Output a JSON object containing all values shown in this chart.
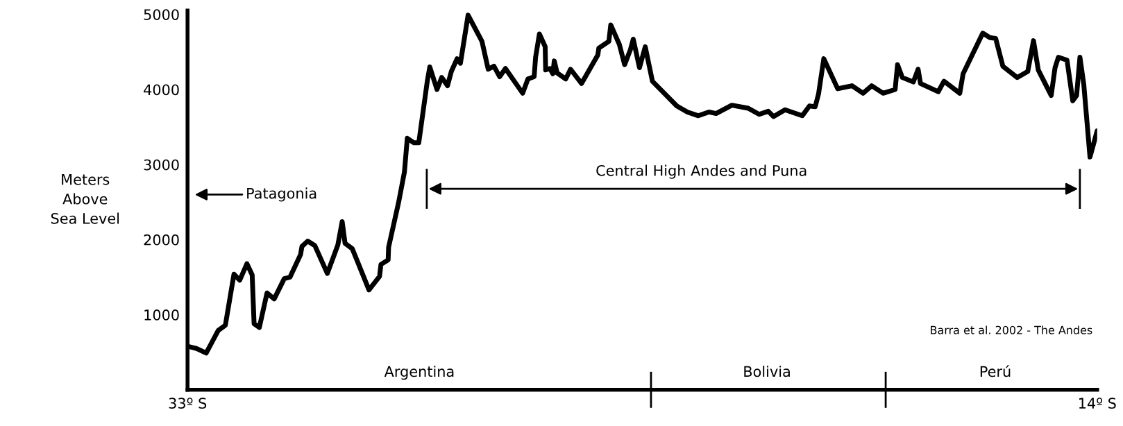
{
  "chart_data": {
    "type": "line",
    "ylabel": "Meters\nAbove\nSea Level",
    "color": "#000000",
    "x": [
      -33.0,
      -32.81,
      -32.61,
      -32.36,
      -32.21,
      -32.03,
      -31.91,
      -31.76,
      -31.65,
      -31.61,
      -31.5,
      -31.34,
      -31.19,
      -30.98,
      -30.86,
      -30.64,
      -30.61,
      -30.49,
      -30.34,
      -30.08,
      -29.86,
      -29.77,
      -29.71,
      -29.56,
      -29.21,
      -28.99,
      -28.96,
      -28.81,
      -28.8,
      -28.59,
      -28.47,
      -28.41,
      -28.27,
      -28.17,
      -27.99,
      -27.94,
      -27.79,
      -27.69,
      -27.57,
      -27.49,
      -27.37,
      -27.3,
      -27.14,
      -26.85,
      -26.72,
      -26.6,
      -26.48,
      -26.36,
      -26.0,
      -25.89,
      -25.76,
      -25.73,
      -25.65,
      -25.53,
      -25.52,
      -25.43,
      -25.37,
      -25.34,
      -25.28,
      -25.1,
      -25.0,
      -24.77,
      -24.43,
      -24.41,
      -24.2,
      -24.16,
      -23.98,
      -23.87,
      -23.75,
      -23.69,
      -23.56,
      -23.44,
      -23.29,
      -22.78,
      -22.56,
      -22.33,
      -22.11,
      -21.96,
      -21.63,
      -21.29,
      -21.06,
      -20.87,
      -20.76,
      -20.52,
      -20.16,
      -20.01,
      -19.89,
      -19.82,
      -19.71,
      -19.42,
      -19.12,
      -18.89,
      -18.71,
      -18.47,
      -18.22,
      -18.17,
      -18.07,
      -17.84,
      -17.74,
      -17.69,
      -17.32,
      -17.2,
      -16.87,
      -16.8,
      -16.39,
      -16.24,
      -16.12,
      -15.97,
      -15.67,
      -15.45,
      -15.33,
      -15.23,
      -14.96,
      -14.88,
      -14.81,
      -14.63,
      -14.51,
      -14.43,
      -14.36,
      -14.28,
      -14.15,
      -14.0
    ],
    "values": [
      580,
      550,
      490,
      790,
      860,
      1540,
      1460,
      1680,
      1530,
      880,
      830,
      1290,
      1210,
      1480,
      1500,
      1800,
      1910,
      1980,
      1920,
      1550,
      1930,
      2240,
      1950,
      1880,
      1330,
      1510,
      1670,
      1730,
      1900,
      2500,
      2900,
      3350,
      3290,
      3290,
      4120,
      4300,
      4000,
      4160,
      4050,
      4240,
      4410,
      4350,
      4990,
      4640,
      4270,
      4310,
      4170,
      4280,
      3950,
      4140,
      4170,
      4430,
      4740,
      4570,
      4260,
      4280,
      4210,
      4380,
      4220,
      4140,
      4270,
      4080,
      4460,
      4550,
      4640,
      4860,
      4600,
      4330,
      4530,
      4670,
      4290,
      4570,
      4110,
      3780,
      3700,
      3650,
      3700,
      3680,
      3790,
      3750,
      3670,
      3710,
      3640,
      3730,
      3650,
      3780,
      3770,
      3940,
      4410,
      4010,
      4050,
      3950,
      4050,
      3950,
      4000,
      4330,
      4160,
      4100,
      4270,
      4080,
      3970,
      4110,
      3950,
      4210,
      4750,
      4690,
      4680,
      4310,
      4160,
      4240,
      4650,
      4260,
      3920,
      4290,
      4430,
      4390,
      3850,
      3920,
      4430,
      4070,
      3100,
      3450
    ],
    "xlim": [
      -33,
      -14
    ],
    "xticks": [
      {
        "value": -33,
        "label": "33º S"
      },
      {
        "value": -14,
        "label": "14º S"
      }
    ],
    "ylim": [
      0,
      5050
    ],
    "yticks": [
      1000,
      2000,
      3000,
      4000,
      5000
    ],
    "grid": false,
    "legend": false,
    "marker": "none",
    "line_style": "solid",
    "annotations": [
      "Patagonia",
      "Central High Andes and Puna",
      "Argentina",
      "Bolivia",
      "Perú",
      "Barra et al. 2002 - The Andes"
    ]
  }
}
